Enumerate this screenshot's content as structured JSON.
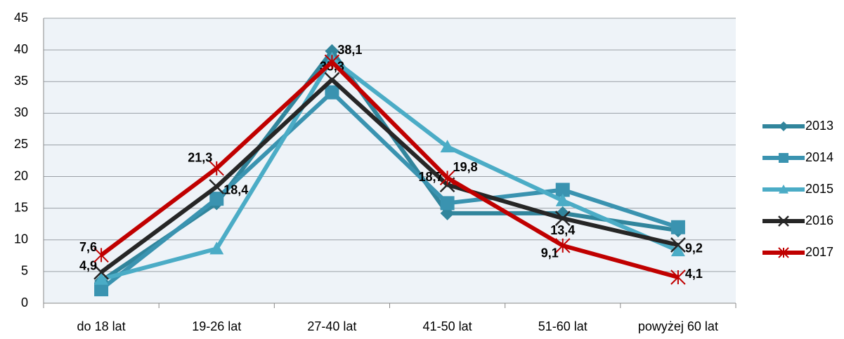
{
  "chart_data": {
    "type": "line",
    "categories": [
      "do 18 lat",
      "19-26 lat",
      "27-40 lat",
      "41-50 lat",
      "51-60 lat",
      "powyżej 60 lat"
    ],
    "series": [
      {
        "name": "2013",
        "color": "#31859C",
        "marker": "diamond",
        "values": [
          3.5,
          15.8,
          39.8,
          14.2,
          14.2,
          11.5
        ]
      },
      {
        "name": "2014",
        "color": "#3A93B0",
        "marker": "square",
        "values": [
          2.2,
          16.5,
          33.3,
          15.8,
          17.9,
          12.0
        ]
      },
      {
        "name": "2015",
        "color": "#4BACC6",
        "marker": "triangle",
        "values": [
          3.8,
          8.6,
          38.6,
          24.7,
          16.2,
          8.3
        ]
      },
      {
        "name": "2016",
        "color": "#262626",
        "marker": "x",
        "values": [
          4.9,
          18.4,
          35.3,
          18.7,
          13.4,
          9.2
        ],
        "value_labels": [
          "4,9",
          "18,4",
          "35,3",
          "18,7",
          "13,4",
          "9,2"
        ]
      },
      {
        "name": "2017",
        "color": "#C00000",
        "marker": "star",
        "values": [
          7.6,
          21.3,
          38.1,
          19.8,
          9.1,
          4.1
        ],
        "value_labels": [
          "7,6",
          "21,3",
          "38,1",
          "19,8",
          "9,1",
          "4,1"
        ]
      }
    ],
    "ylim": [
      0,
      45
    ],
    "yticks": [
      0,
      5,
      10,
      15,
      20,
      25,
      30,
      35,
      40,
      45
    ],
    "grid": true,
    "legend": "right"
  }
}
